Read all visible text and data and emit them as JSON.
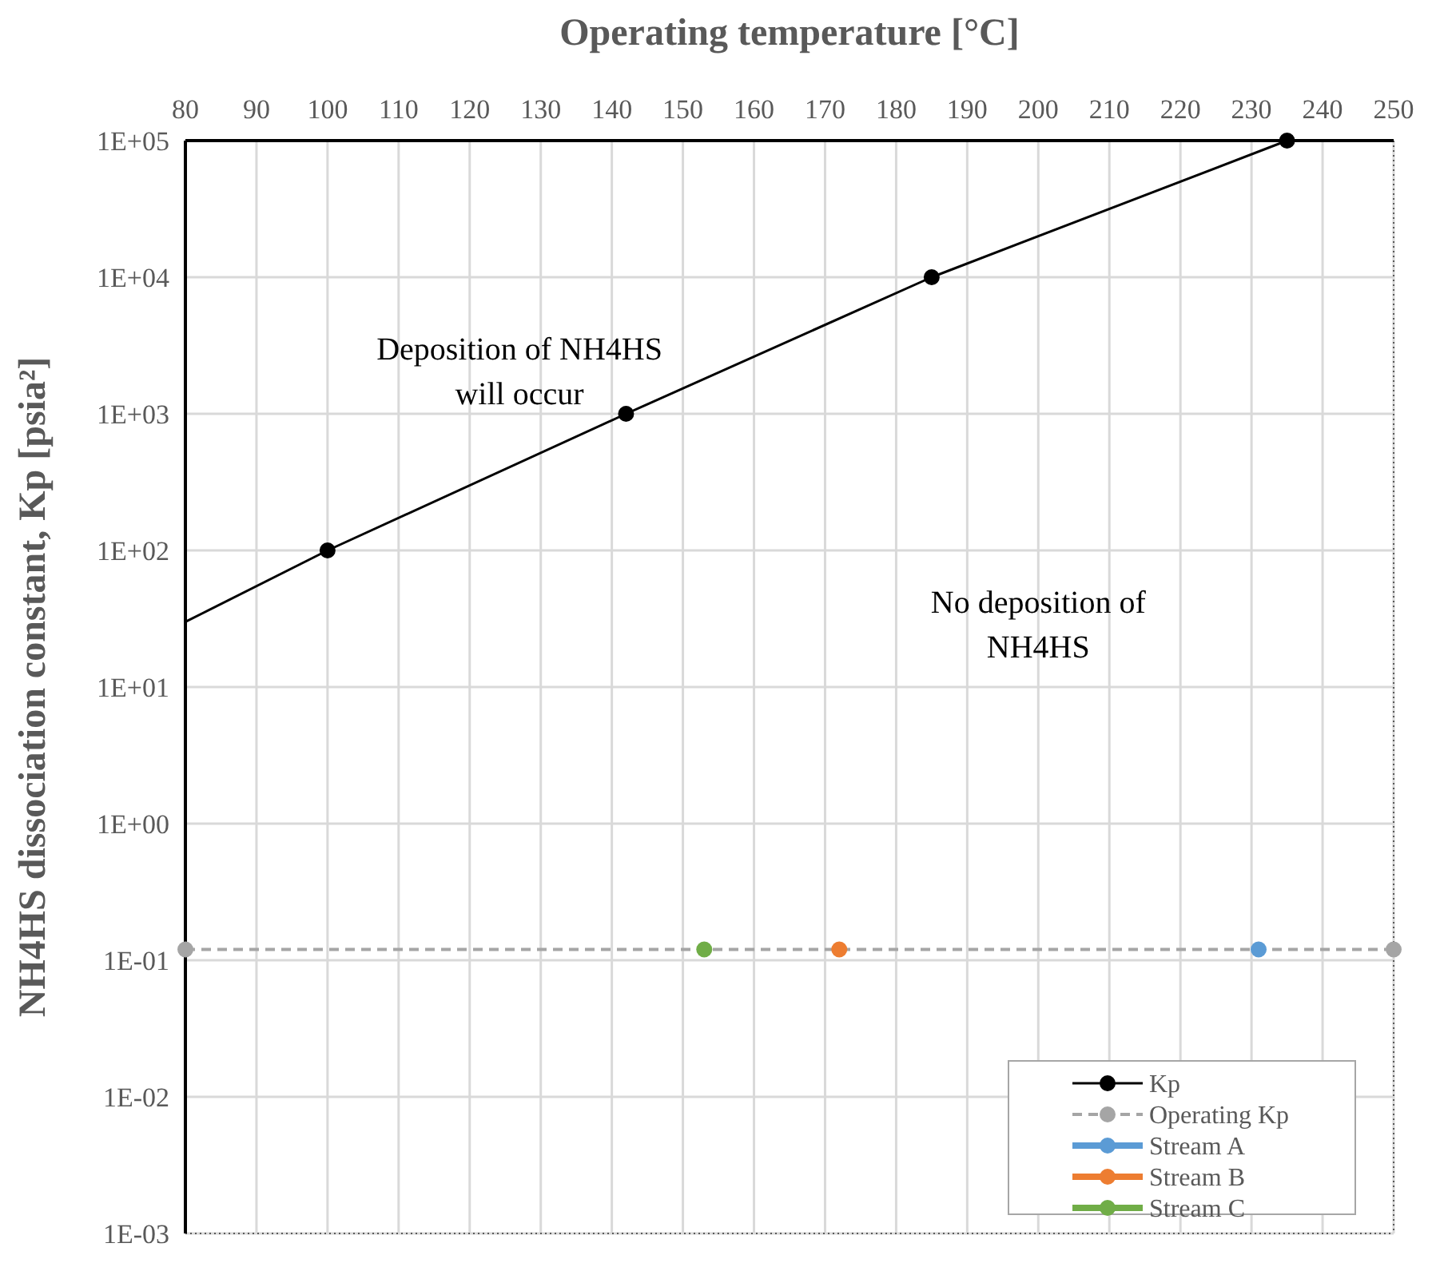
{
  "chart_data": {
    "type": "line",
    "xlabel": "Operating temperature [°C]",
    "ylabel": "NH4HS dissociation constant, Kp [psia²]",
    "xlim": [
      80,
      250
    ],
    "xticks": [
      80,
      90,
      100,
      110,
      120,
      130,
      140,
      150,
      160,
      170,
      180,
      190,
      200,
      210,
      220,
      230,
      240,
      250
    ],
    "ylim": [
      0.001,
      100000
    ],
    "yticks": [
      {
        "value": 0.001,
        "label": "1E-03"
      },
      {
        "value": 0.01,
        "label": "1E-02"
      },
      {
        "value": 0.1,
        "label": "1E-01"
      },
      {
        "value": 1,
        "label": "1E+00"
      },
      {
        "value": 10,
        "label": "1E+01"
      },
      {
        "value": 100,
        "label": "1E+02"
      },
      {
        "value": 1000,
        "label": "1E+03"
      },
      {
        "value": 10000,
        "label": "1E+04"
      },
      {
        "value": 100000,
        "label": "1E+05"
      }
    ],
    "log": "y",
    "grid": true,
    "legend": "bottom right",
    "series": [
      {
        "name": "Kp",
        "color": "#000000",
        "x": [
          100,
          142,
          185,
          235
        ],
        "values": [
          100,
          1000,
          10000,
          100000
        ],
        "marker": "circle",
        "line_style": "solid"
      },
      {
        "color": "#000000",
        "x": [
          80,
          100
        ],
        "values": [
          30,
          100
        ],
        "marker": "none",
        "line_style": "solid"
      },
      {
        "name": "Operating Kp",
        "color": "#a5a5a5",
        "x": [
          80,
          250
        ],
        "values": [
          0.12,
          0.12
        ],
        "marker": "circle",
        "line_style": "dashed"
      },
      {
        "name": "Stream A",
        "color": "#5b9bd5",
        "x": [
          231
        ],
        "values": [
          0.12
        ],
        "marker": "circle",
        "line_style": "solid"
      },
      {
        "name": "Stream B",
        "color": "#ed7d31",
        "x": [
          172
        ],
        "values": [
          0.12
        ],
        "marker": "circle",
        "line_style": "solid"
      },
      {
        "name": "Stream C",
        "color": "#70ad47",
        "x": [
          153
        ],
        "values": [
          0.12
        ],
        "marker": "circle",
        "line_style": "solid"
      }
    ],
    "annotations": [
      "Deposition of NH4HS\nwill occur",
      "No deposition of\nNH4HS"
    ]
  }
}
